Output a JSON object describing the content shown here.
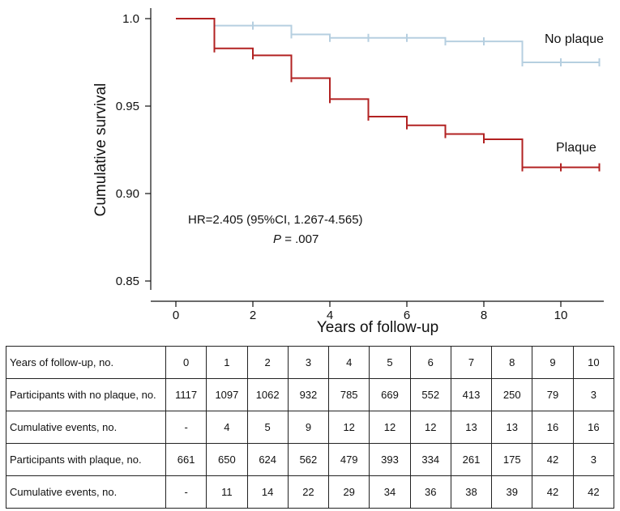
{
  "chart_data": {
    "type": "line",
    "subtype": "kaplan-meier-step",
    "xlabel": "Years of follow-up",
    "ylabel": "Cumulative survival",
    "xlim": [
      -0.5,
      11
    ],
    "ylim": [
      0.84,
      1.005
    ],
    "xticks": [
      0,
      2,
      4,
      6,
      8,
      10
    ],
    "yticks": [
      0.85,
      0.9,
      0.95,
      1.0
    ],
    "ytick_labels": [
      "0.85",
      "0.90",
      "0.95",
      "1.0"
    ],
    "series": [
      {
        "name": "No plaque",
        "color": "#b6cfe0",
        "steps": [
          [
            0,
            1.0
          ],
          [
            1,
            0.996
          ],
          [
            2,
            0.996
          ],
          [
            3,
            0.991
          ],
          [
            4,
            0.989
          ],
          [
            5,
            0.989
          ],
          [
            6,
            0.989
          ],
          [
            7,
            0.987
          ],
          [
            8,
            0.987
          ],
          [
            9,
            0.975
          ],
          [
            10,
            0.975
          ],
          [
            11,
            0.975
          ]
        ],
        "censor_x": [
          1,
          2,
          3,
          4,
          5,
          6,
          7,
          8,
          9,
          10,
          11
        ]
      },
      {
        "name": "Plaque",
        "color": "#b22222",
        "steps": [
          [
            0,
            1.0
          ],
          [
            1,
            0.983
          ],
          [
            2,
            0.979
          ],
          [
            3,
            0.966
          ],
          [
            4,
            0.954
          ],
          [
            5,
            0.944
          ],
          [
            6,
            0.939
          ],
          [
            7,
            0.934
          ],
          [
            8,
            0.931
          ],
          [
            9,
            0.915
          ],
          [
            10,
            0.915
          ],
          [
            11,
            0.915
          ]
        ],
        "censor_x": [
          1,
          2,
          3,
          4,
          5,
          6,
          7,
          8,
          9,
          10,
          11
        ]
      }
    ],
    "annotations": {
      "hr": "HR=2.405 (95%CI, 1.267-4.565)",
      "p_label": "P",
      "p_value": "= .007"
    }
  },
  "risk_table": {
    "rows": [
      {
        "label": "Years of follow-up, no.",
        "values": [
          "0",
          "1",
          "2",
          "3",
          "4",
          "5",
          "6",
          "7",
          "8",
          "9",
          "10"
        ]
      },
      {
        "label": "Participants with no plaque, no.",
        "values": [
          "1117",
          "1097",
          "1062",
          "932",
          "785",
          "669",
          "552",
          "413",
          "250",
          "79",
          "3"
        ]
      },
      {
        "label": "Cumulative events, no.",
        "values": [
          "-",
          "4",
          "5",
          "9",
          "12",
          "12",
          "12",
          "13",
          "13",
          "16",
          "16"
        ]
      },
      {
        "label": "Participants with plaque, no.",
        "values": [
          "661",
          "650",
          "624",
          "562",
          "479",
          "393",
          "334",
          "261",
          "175",
          "42",
          "3"
        ]
      },
      {
        "label": "Cumulative events, no.",
        "values": [
          "-",
          "11",
          "14",
          "22",
          "29",
          "34",
          "36",
          "38",
          "39",
          "42",
          "42"
        ]
      }
    ]
  }
}
